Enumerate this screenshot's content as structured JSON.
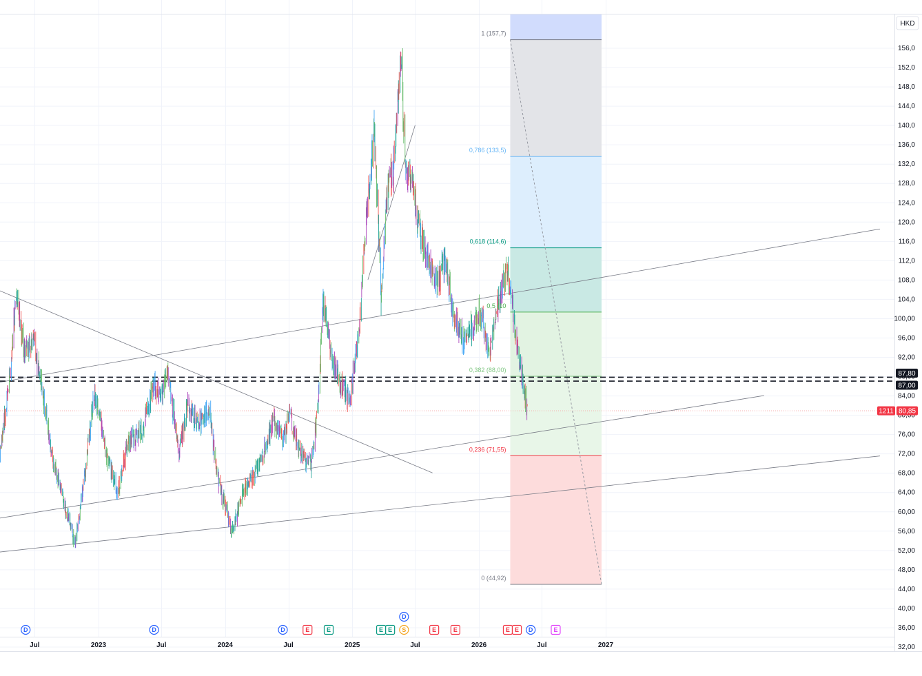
{
  "currency_label": "HKD",
  "chart_data": {
    "type": "candlestick",
    "title": "",
    "currency": "HKD",
    "ylim": [
      30,
      160
    ],
    "y_ticks": [
      "32,00",
      "36,00",
      "40,00",
      "44,00",
      "48,00",
      "52,00",
      "56,00",
      "60,00",
      "64,00",
      "68,00",
      "72,00",
      "76,00",
      "80,00",
      "84,00",
      "88,00",
      "92,00",
      "96,00",
      "100,00",
      "104,0",
      "108,0",
      "112,0",
      "116,0",
      "120,0",
      "124,0",
      "128,0",
      "132,0",
      "136,0",
      "140,0",
      "144,0",
      "148,0",
      "152,0",
      "156,0"
    ],
    "y_tick_values": [
      32,
      36,
      40,
      44,
      48,
      52,
      56,
      60,
      64,
      68,
      72,
      76,
      80,
      84,
      88,
      92,
      96,
      100,
      104,
      108,
      112,
      116,
      120,
      124,
      128,
      132,
      136,
      140,
      144,
      148,
      152,
      156
    ],
    "x_ticks": [
      {
        "label": "Jul",
        "date": "2022-07-01"
      },
      {
        "label": "2023",
        "date": "2023-01-01"
      },
      {
        "label": "Jul",
        "date": "2023-07-01"
      },
      {
        "label": "2024",
        "date": "2024-01-01"
      },
      {
        "label": "Jul",
        "date": "2024-07-01"
      },
      {
        "label": "2025",
        "date": "2025-01-01"
      },
      {
        "label": "Jul",
        "date": "2025-07-01"
      },
      {
        "label": "2026",
        "date": "2026-01-01"
      },
      {
        "label": "Jul",
        "date": "2026-07-01"
      },
      {
        "label": "2027",
        "date": "2027-01-01"
      }
    ],
    "price_path": [
      [
        "2022-02-01",
        72
      ],
      [
        "2022-03-15",
        67
      ],
      [
        "2022-04-20",
        88
      ],
      [
        "2022-05-10",
        106
      ],
      [
        "2022-06-01",
        93
      ],
      [
        "2022-07-01",
        95
      ],
      [
        "2022-07-25",
        84
      ],
      [
        "2022-08-20",
        71
      ],
      [
        "2022-09-20",
        63
      ],
      [
        "2022-10-25",
        53
      ],
      [
        "2022-11-20",
        66
      ],
      [
        "2022-12-20",
        85
      ],
      [
        "2023-01-25",
        71
      ],
      [
        "2023-02-25",
        64
      ],
      [
        "2023-03-25",
        74
      ],
      [
        "2023-05-01",
        76
      ],
      [
        "2023-06-10",
        86
      ],
      [
        "2023-07-01",
        84
      ],
      [
        "2023-07-20",
        89
      ],
      [
        "2023-08-20",
        72
      ],
      [
        "2023-09-15",
        82
      ],
      [
        "2023-10-15",
        78
      ],
      [
        "2023-11-15",
        81
      ],
      [
        "2023-12-10",
        67
      ],
      [
        "2024-01-20",
        56
      ],
      [
        "2024-02-20",
        64
      ],
      [
        "2024-03-20",
        67
      ],
      [
        "2024-04-20",
        72
      ],
      [
        "2024-05-20",
        79
      ],
      [
        "2024-06-15",
        75
      ],
      [
        "2024-07-05",
        80
      ],
      [
        "2024-08-01",
        72
      ],
      [
        "2024-09-05",
        70
      ],
      [
        "2024-09-25",
        82
      ],
      [
        "2024-10-08",
        104
      ],
      [
        "2024-11-01",
        92
      ],
      [
        "2024-12-01",
        86
      ],
      [
        "2024-12-25",
        83
      ],
      [
        "2025-01-20",
        98
      ],
      [
        "2025-02-15",
        125
      ],
      [
        "2025-03-05",
        140
      ],
      [
        "2025-03-25",
        104
      ],
      [
        "2025-04-10",
        125
      ],
      [
        "2025-05-01",
        132
      ],
      [
        "2025-05-20",
        155
      ],
      [
        "2025-06-05",
        130
      ],
      [
        "2025-06-25",
        128
      ],
      [
        "2025-07-15",
        117
      ],
      [
        "2025-08-10",
        112
      ],
      [
        "2025-09-01",
        107
      ],
      [
        "2025-09-25",
        112
      ],
      [
        "2025-10-20",
        101
      ],
      [
        "2025-11-15",
        96
      ],
      [
        "2025-12-10",
        98
      ],
      [
        "2026-01-05",
        101
      ],
      [
        "2026-02-01",
        93
      ],
      [
        "2026-02-20",
        102
      ],
      [
        "2026-03-10",
        107
      ],
      [
        "2026-03-25",
        110
      ],
      [
        "2026-04-10",
        100
      ],
      [
        "2026-04-25",
        92
      ],
      [
        "2026-05-10",
        86
      ],
      [
        "2026-05-20",
        80.85
      ]
    ],
    "last_price": {
      "symbol": "1211",
      "value": "80,85",
      "numeric": 80.85
    },
    "price_labels": [
      {
        "value": "87,80",
        "numeric": 87.8
      },
      {
        "value": "87,00",
        "numeric": 87.0
      }
    ],
    "horizontal_lines": [
      87.8,
      87.0
    ],
    "fib_retracement": {
      "start_date": "2026-04-01",
      "end_date": "2026-12-20",
      "levels": [
        {
          "ratio": 1,
          "label": "1 (157,7)",
          "price": 157.7,
          "color": "#787b86"
        },
        {
          "ratio": 0.786,
          "label": "0,786 (133,5)",
          "price": 133.5,
          "color": "#64b5f6"
        },
        {
          "ratio": 0.618,
          "label": "0,618 (114,6)",
          "price": 114.6,
          "color": "#089981"
        },
        {
          "ratio": 0.5,
          "label": "0,5 (10",
          "price": 101.3,
          "color": "#4caf50"
        },
        {
          "ratio": 0.382,
          "label": "0,382 (88,00)",
          "price": 88.0,
          "color": "#81c784"
        },
        {
          "ratio": 0.236,
          "label": "0,236 (71,55)",
          "price": 71.55,
          "color": "#f23645"
        },
        {
          "ratio": 0,
          "label": "0 (44,92)",
          "price": 44.92,
          "color": "#787b86"
        }
      ],
      "extension_top": 163
    },
    "trend_lines": [
      {
        "from": [
          "2021-11-01",
          110
        ],
        "to": [
          "2025-08-20",
          68
        ]
      },
      {
        "from": [
          "2021-11-01",
          85
        ],
        "to": [
          "2029-03-01",
          118.5
        ]
      },
      {
        "from": [
          "2021-11-01",
          57
        ],
        "to": [
          "2028-04-01",
          84
        ]
      },
      {
        "from": [
          "2021-11-01",
          50.5
        ],
        "to": [
          "2029-03-01",
          71.5
        ]
      },
      {
        "from": [
          "2025-02-15",
          108
        ],
        "to": [
          "2025-07-01",
          140
        ]
      }
    ],
    "dashed_diagonal": {
      "from": [
        "2026-04-01",
        157.7
      ],
      "to": [
        "2026-12-20",
        44.92
      ]
    },
    "events": [
      {
        "type": "D",
        "date": "2022-06-05",
        "row": 0
      },
      {
        "type": "D",
        "date": "2023-06-10",
        "row": 0
      },
      {
        "type": "D",
        "date": "2024-06-15",
        "row": 0
      },
      {
        "type": "E",
        "date": "2024-08-25",
        "row": 0
      },
      {
        "type": "E",
        "date": "2024-10-25",
        "row": 0
      },
      {
        "type": "E",
        "date": "2025-03-25",
        "row": 0
      },
      {
        "type": "E",
        "date": "2025-04-20",
        "row": 0
      },
      {
        "type": "S",
        "date": "2025-05-30",
        "row": 0
      },
      {
        "type": "D",
        "date": "2025-05-30",
        "row": 1
      },
      {
        "type": "E",
        "date": "2025-08-25",
        "row": 0
      },
      {
        "type": "E",
        "date": "2025-10-25",
        "row": 0
      },
      {
        "type": "E",
        "date": "2026-03-25",
        "row": 0
      },
      {
        "type": "E",
        "date": "2026-04-20",
        "row": 0
      },
      {
        "type": "D",
        "date": "2026-05-30",
        "row": 0
      },
      {
        "type": "E",
        "date": "2026-08-10",
        "row": 0
      }
    ]
  }
}
